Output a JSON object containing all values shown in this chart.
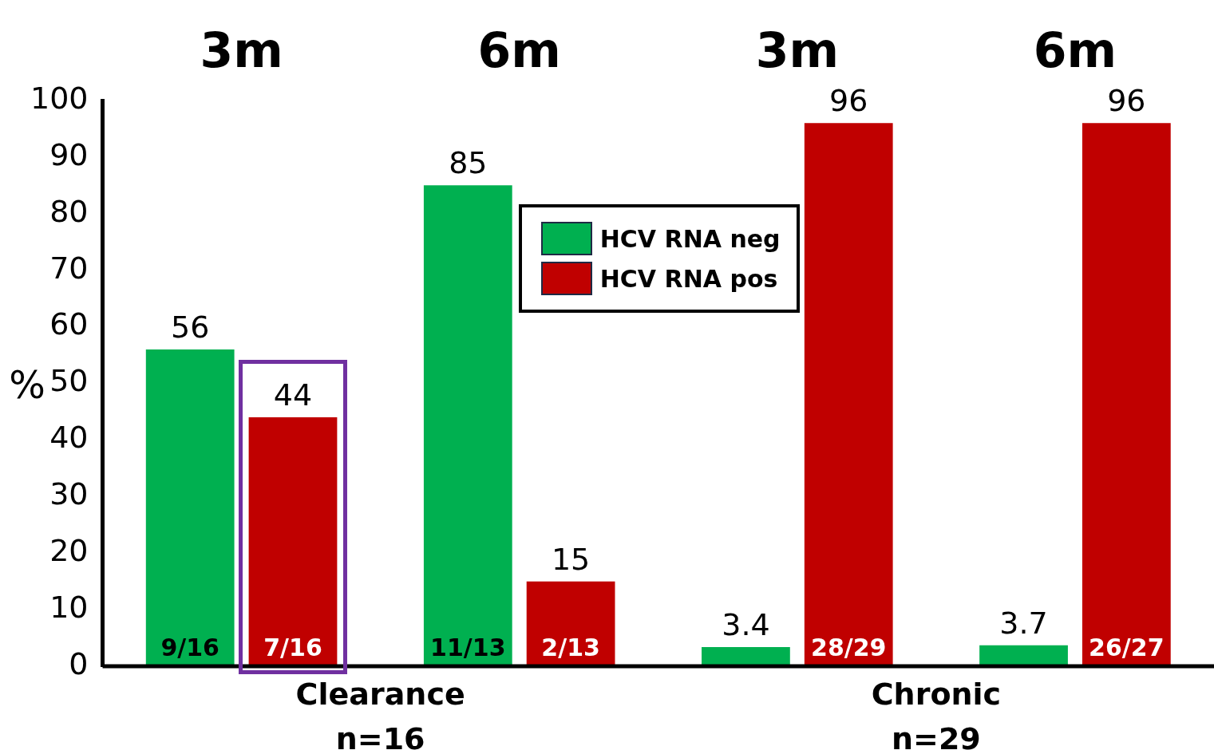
{
  "chart_data": {
    "type": "bar",
    "ylabel": "%",
    "categories": [
      "3m",
      "6m",
      "3m",
      "6m"
    ],
    "series": [
      {
        "name": "HCV RNA neg",
        "color": "#00b050",
        "values": [
          56,
          85,
          3.4,
          3.7
        ]
      },
      {
        "name": "HCV RNA pos",
        "color": "#c00000",
        "values": [
          44,
          15,
          96,
          96
        ]
      }
    ],
    "ylim": [
      0,
      100
    ],
    "yticks": [
      0,
      10,
      20,
      30,
      40,
      50,
      60,
      70,
      80,
      90,
      100
    ],
    "grid": false,
    "legend": "top",
    "data_labels": true,
    "annotations": [
      "Clearance\nn=16",
      "Chronic\nn=29",
      "9/16",
      "7/16",
      "11/13",
      "2/13",
      "28/29",
      "26/27"
    ]
  }
}
